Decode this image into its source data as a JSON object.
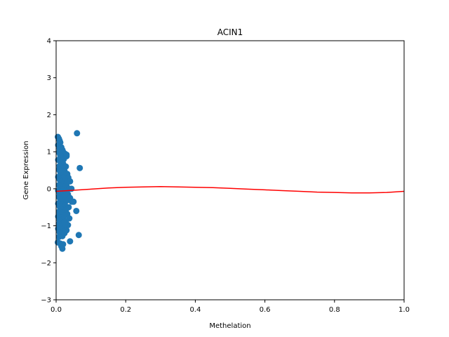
{
  "chart_data": {
    "type": "scatter",
    "title": "ACIN1",
    "xlabel": "Methelation",
    "ylabel": "Gene Expression",
    "xlim": [
      0.0,
      1.0
    ],
    "ylim": [
      -3,
      4
    ],
    "xticks": [
      "0.0",
      "0.2",
      "0.4",
      "0.6",
      "0.8",
      "1.0"
    ],
    "yticks": [
      "−3",
      "−2",
      "−1",
      "0",
      "1",
      "2",
      "3",
      "4"
    ],
    "grid": false,
    "legend": "none",
    "colors": {
      "points": "#1f77b4",
      "fit": "#ff0000"
    },
    "series": [
      {
        "kind": "points",
        "points": [
          [
            0.005,
            1.4
          ],
          [
            0.008,
            1.35
          ],
          [
            0.01,
            1.3
          ],
          [
            0.012,
            1.25
          ],
          [
            0.006,
            1.18
          ],
          [
            0.015,
            1.12
          ],
          [
            0.01,
            1.08
          ],
          [
            0.018,
            1.05
          ],
          [
            0.02,
            1.0
          ],
          [
            0.008,
            0.98
          ],
          [
            0.025,
            0.95
          ],
          [
            0.03,
            0.92
          ],
          [
            0.012,
            0.9
          ],
          [
            0.016,
            0.85
          ],
          [
            0.022,
            0.8
          ],
          [
            0.006,
            0.78
          ],
          [
            0.014,
            0.72
          ],
          [
            0.02,
            0.68
          ],
          [
            0.01,
            0.62
          ],
          [
            0.028,
            0.6
          ],
          [
            0.018,
            0.55
          ],
          [
            0.008,
            0.52
          ],
          [
            0.024,
            0.48
          ],
          [
            0.012,
            0.45
          ],
          [
            0.032,
            0.4
          ],
          [
            0.016,
            0.35
          ],
          [
            0.006,
            0.32
          ],
          [
            0.02,
            0.3
          ],
          [
            0.035,
            0.3
          ],
          [
            0.01,
            0.25
          ],
          [
            0.026,
            0.22
          ],
          [
            0.04,
            0.2
          ],
          [
            0.014,
            0.18
          ],
          [
            0.018,
            0.12
          ],
          [
            0.008,
            0.1
          ],
          [
            0.03,
            0.08
          ],
          [
            0.022,
            0.05
          ],
          [
            0.012,
            0.02
          ],
          [
            0.038,
            0.0
          ],
          [
            0.016,
            -0.02
          ],
          [
            0.006,
            -0.05
          ],
          [
            0.028,
            -0.08
          ],
          [
            0.02,
            -0.1
          ],
          [
            0.01,
            -0.12
          ],
          [
            0.034,
            -0.15
          ],
          [
            0.014,
            -0.18
          ],
          [
            0.024,
            -0.2
          ],
          [
            0.008,
            -0.22
          ],
          [
            0.04,
            -0.25
          ],
          [
            0.018,
            -0.28
          ],
          [
            0.012,
            -0.3
          ],
          [
            0.03,
            -0.32
          ],
          [
            0.045,
            -0.35
          ],
          [
            0.022,
            -0.38
          ],
          [
            0.006,
            -0.4
          ],
          [
            0.016,
            -0.42
          ],
          [
            0.026,
            -0.45
          ],
          [
            0.01,
            -0.48
          ],
          [
            0.036,
            -0.5
          ],
          [
            0.02,
            -0.52
          ],
          [
            0.014,
            -0.55
          ],
          [
            0.058,
            -0.6
          ],
          [
            0.028,
            -0.58
          ],
          [
            0.008,
            -0.62
          ],
          [
            0.018,
            -0.65
          ],
          [
            0.032,
            -0.68
          ],
          [
            0.012,
            -0.7
          ],
          [
            0.024,
            -0.72
          ],
          [
            0.006,
            -0.75
          ],
          [
            0.016,
            -0.78
          ],
          [
            0.038,
            -0.8
          ],
          [
            0.02,
            -0.82
          ],
          [
            0.01,
            -0.85
          ],
          [
            0.028,
            -0.88
          ],
          [
            0.014,
            -0.9
          ],
          [
            0.022,
            -0.92
          ],
          [
            0.008,
            -0.95
          ],
          [
            0.034,
            -0.98
          ],
          [
            0.018,
            -1.0
          ],
          [
            0.012,
            -1.02
          ],
          [
            0.026,
            -1.05
          ],
          [
            0.006,
            -1.08
          ],
          [
            0.016,
            -1.1
          ],
          [
            0.03,
            -1.12
          ],
          [
            0.02,
            -1.15
          ],
          [
            0.01,
            -1.18
          ],
          [
            0.024,
            -1.2
          ],
          [
            0.014,
            -1.22
          ],
          [
            0.065,
            -1.25
          ],
          [
            0.018,
            -1.28
          ],
          [
            0.008,
            -1.3
          ],
          [
            0.04,
            -1.42
          ],
          [
            0.005,
            -1.45
          ],
          [
            0.012,
            -1.48
          ],
          [
            0.02,
            -1.5
          ],
          [
            0.015,
            -1.55
          ],
          [
            0.018,
            -1.62
          ],
          [
            0.06,
            1.5
          ],
          [
            0.068,
            0.56
          ],
          [
            0.03,
            0.88
          ],
          [
            0.044,
            0.0
          ],
          [
            0.05,
            -0.35
          ]
        ]
      },
      {
        "kind": "fit-curve",
        "x": [
          0.0,
          0.05,
          0.1,
          0.15,
          0.2,
          0.25,
          0.3,
          0.35,
          0.4,
          0.45,
          0.5,
          0.55,
          0.6,
          0.65,
          0.7,
          0.75,
          0.8,
          0.85,
          0.9,
          0.95,
          1.0
        ],
        "y": [
          -0.07,
          -0.04,
          -0.01,
          0.02,
          0.04,
          0.05,
          0.06,
          0.05,
          0.04,
          0.03,
          0.01,
          -0.01,
          -0.03,
          -0.05,
          -0.07,
          -0.09,
          -0.1,
          -0.11,
          -0.11,
          -0.1,
          -0.07
        ]
      }
    ]
  }
}
